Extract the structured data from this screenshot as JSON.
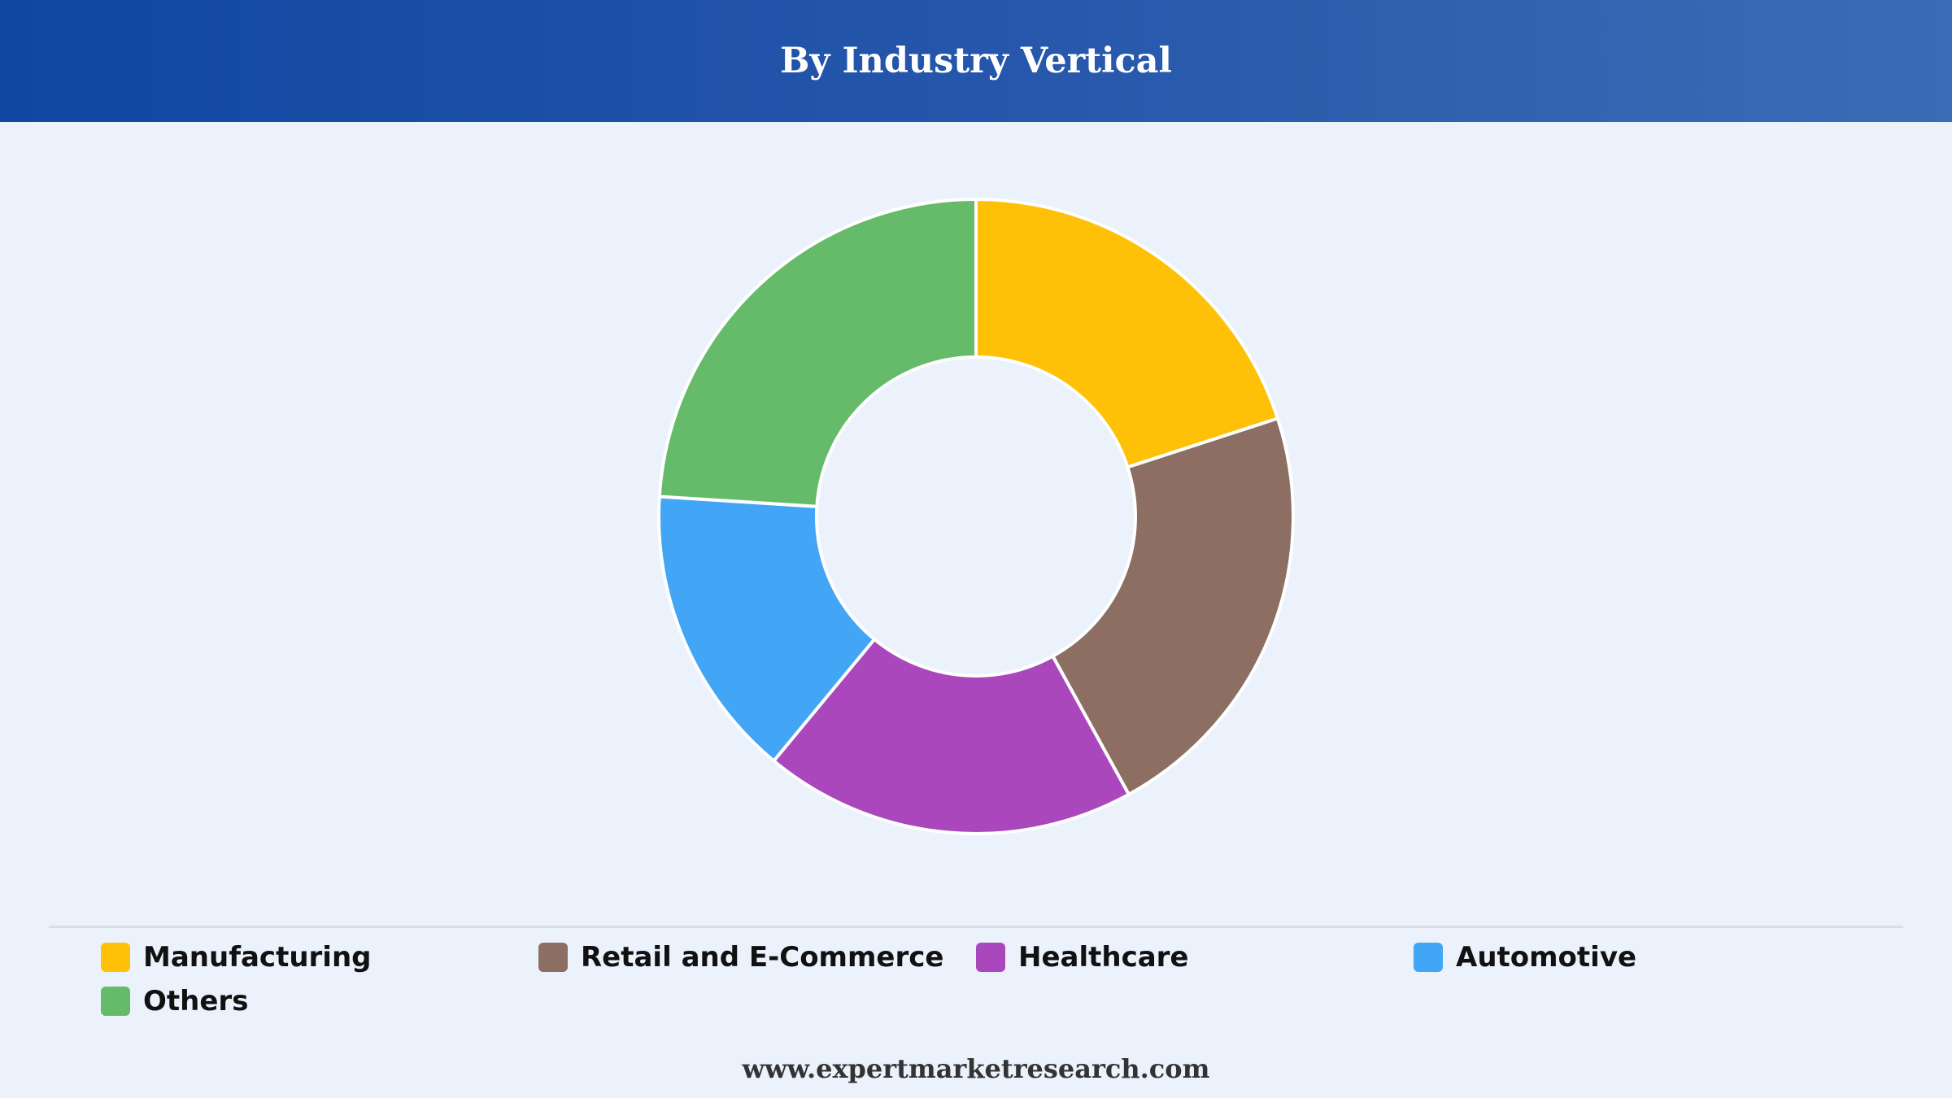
{
  "header": {
    "title": "By Industry Vertical"
  },
  "footer": {
    "url_text": "www.expertmarketresearch.com"
  },
  "colors": {
    "header_start": "#0f47a1",
    "header_end": "#3a6db5",
    "background": "#ebf2fc",
    "slice_border": "#ffffff"
  },
  "chart_data": {
    "type": "pie",
    "donut": true,
    "title": "By Industry Vertical",
    "legend_position": "bottom",
    "categories": [
      "Manufacturing",
      "Retail and E-Commerce",
      "Healthcare",
      "Automotive",
      "Others"
    ],
    "values": [
      20,
      22,
      19,
      15,
      24
    ],
    "colors": [
      "#ffc107",
      "#8d6e63",
      "#ab47bc",
      "#42a5f5",
      "#66bb6a"
    ]
  }
}
